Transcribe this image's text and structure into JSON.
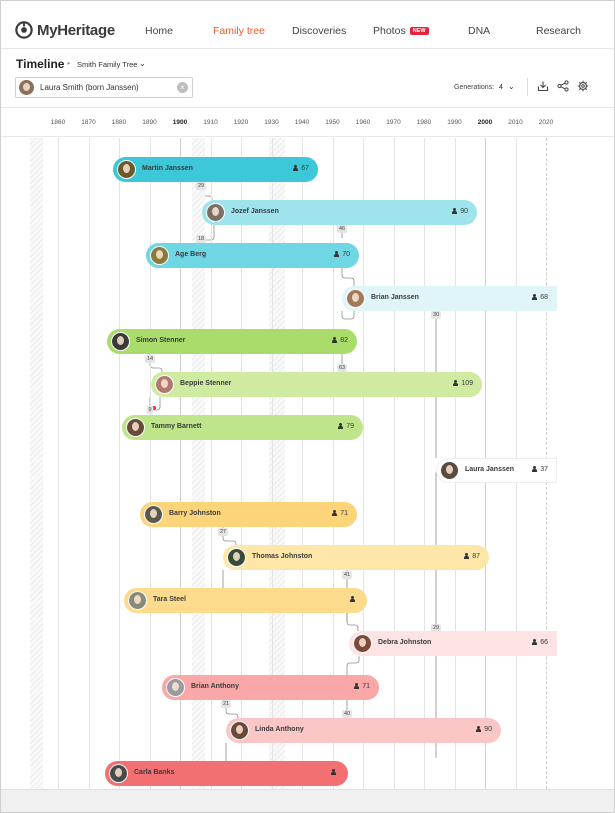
{
  "app": {
    "logo_text": "MyHeritage",
    "logo_icon": "myheritage-logo-icon",
    "nav": [
      {
        "label": "Home"
      },
      {
        "label": "Family tree",
        "active": true
      },
      {
        "label": "Discoveries"
      },
      {
        "label": "Photos",
        "badge": "NEW"
      },
      {
        "label": "DNA"
      },
      {
        "label": "Research"
      }
    ],
    "accent_color": "#e85a2a"
  },
  "toolbar": {
    "title": "Timeline",
    "separator": "•",
    "tree_name": "Smith Family Tree",
    "search_value": "Laura Smith (born Janssen)",
    "generations_label": "Generations:",
    "generations_value": "4",
    "icons": [
      "download-icon",
      "share-icon",
      "settings-gear-icon"
    ]
  },
  "timeline": {
    "years": [
      "1860",
      "1870",
      "1880",
      "1890",
      "1900",
      "1910",
      "1920",
      "1930",
      "1940",
      "1950",
      "1960",
      "1970",
      "1980",
      "1990",
      "2000",
      "2010",
      "2020"
    ],
    "major_years": [
      "1900",
      "2000"
    ],
    "people": [
      {
        "name": "Martin Janssen",
        "age": "67",
        "color": "#3cc8d8",
        "avatar": "#6b5a2e"
      },
      {
        "name": "Jozef Janssen",
        "age": "90",
        "color": "#9fe4ec",
        "avatar": "#7a6e66"
      },
      {
        "name": "Age Berg",
        "age": "70",
        "color": "#6fd6e4",
        "avatar": "#8a7a3a"
      },
      {
        "name": "Brian Janssen",
        "age": "68",
        "color": "#dff5f8",
        "avatar": "#a07a5a"
      },
      {
        "name": "Simon Stenner",
        "age": "82",
        "color": "#a9dc6a",
        "avatar": "#3a3a3a"
      },
      {
        "name": "Beppie Stenner",
        "age": "109",
        "color": "#cfeba2",
        "avatar": "#b07a72"
      },
      {
        "name": "Tammy Barnett",
        "age": "79",
        "color": "#bfe58a",
        "avatar": "#6a4a3a"
      },
      {
        "name": "Laura Janssen",
        "age": "37",
        "color": "#ffffff",
        "avatar": "#5a4a40"
      },
      {
        "name": "Barry Johnston",
        "age": "71",
        "color": "#fcd47a",
        "avatar": "#5a5a4a"
      },
      {
        "name": "Thomas Johnston",
        "age": "87",
        "color": "#fde6a8",
        "avatar": "#3a4a3a"
      },
      {
        "name": "Tara Steel",
        "age": "",
        "color": "#fcdc8c",
        "avatar": "#8a8a7a"
      },
      {
        "name": "Debra Johnston",
        "age": "66",
        "color": "#fde3e3",
        "avatar": "#7a4a3a"
      },
      {
        "name": "Brian Anthony",
        "age": "71",
        "color": "#f9a7a7",
        "avatar": "#9a9aa0"
      },
      {
        "name": "Linda Anthony",
        "age": "90",
        "color": "#fbc6c6",
        "avatar": "#6a4a3a"
      },
      {
        "name": "Carla Banks",
        "age": "",
        "color": "#f26f72",
        "avatar": "#4a4a4a"
      }
    ],
    "gap_labels": [
      "29",
      "18",
      "46",
      "30",
      "14",
      "63",
      "9",
      "27",
      "41",
      "29",
      "21",
      "40"
    ]
  }
}
